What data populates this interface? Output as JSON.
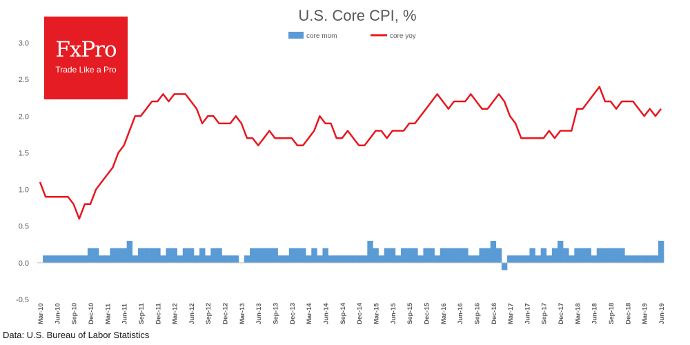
{
  "colors": {
    "mom": "#5b9bd5",
    "yoy": "#e8161e",
    "logo_bg": "#e51c23",
    "axis_text": "#595959"
  },
  "logo": {
    "name": "FxPro",
    "tagline": "Trade Like a Pro"
  },
  "source": "Data: U.S. Bureau of Labor Statistics",
  "chart_data": {
    "type": "bar+line",
    "title": "U.S.  Core CPI, %",
    "xlabel": "",
    "ylabel": "",
    "ylim": [
      -0.5,
      3.0
    ],
    "yticks": [
      "-0.5",
      "0.0",
      "0.5",
      "1.0",
      "1.5",
      "2.0",
      "2.5",
      "3.0"
    ],
    "legend_position": "top",
    "x_start": "Mar-10",
    "x_tick_labels": [
      "Mar-10",
      "Jun-10",
      "Sep-10",
      "Dec-10",
      "Mar-11",
      "Jun-11",
      "Sep-11",
      "Dec-11",
      "Mar-12",
      "Jun-12",
      "Sep-12",
      "Dec-12",
      "Mar-13",
      "Jun-13",
      "Sep-13",
      "Dec-13",
      "Mar-14",
      "Jun-14",
      "Sep-14",
      "Dec-14",
      "Mar-15",
      "Jun-15",
      "Sep-15",
      "Dec-15",
      "Mar-16",
      "Jun-16",
      "Sep-16",
      "Dec-16",
      "Mar-17",
      "Jun-17",
      "Sep-17",
      "Dec-17",
      "Mar-18",
      "Jun-18",
      "Sep-18",
      "Dec-18",
      "Mar-19",
      "Jun-19"
    ],
    "series": [
      {
        "name": "core mom",
        "kind": "bar",
        "values": [
          0.0,
          0.1,
          0.1,
          0.1,
          0.1,
          0.1,
          0.1,
          0.1,
          0.1,
          0.2,
          0.2,
          0.1,
          0.1,
          0.2,
          0.2,
          0.2,
          0.3,
          0.1,
          0.2,
          0.2,
          0.2,
          0.2,
          0.1,
          0.2,
          0.2,
          0.1,
          0.2,
          0.2,
          0.1,
          0.2,
          0.1,
          0.2,
          0.2,
          0.1,
          0.1,
          0.1,
          0.0,
          0.1,
          0.2,
          0.2,
          0.2,
          0.2,
          0.2,
          0.1,
          0.1,
          0.2,
          0.2,
          0.2,
          0.1,
          0.2,
          0.1,
          0.2,
          0.1,
          0.1,
          0.1,
          0.1,
          0.1,
          0.1,
          0.1,
          0.3,
          0.2,
          0.1,
          0.2,
          0.2,
          0.1,
          0.2,
          0.2,
          0.2,
          0.1,
          0.2,
          0.2,
          0.1,
          0.2,
          0.2,
          0.2,
          0.2,
          0.2,
          0.1,
          0.1,
          0.2,
          0.2,
          0.3,
          0.2,
          -0.1,
          0.1,
          0.1,
          0.1,
          0.1,
          0.2,
          0.1,
          0.2,
          0.1,
          0.2,
          0.3,
          0.2,
          0.1,
          0.2,
          0.2,
          0.2,
          0.1,
          0.2,
          0.2,
          0.2,
          0.2,
          0.2,
          0.1,
          0.1,
          0.1,
          0.1,
          0.1,
          0.1,
          0.3
        ]
      },
      {
        "name": "core yoy",
        "kind": "line",
        "values": [
          1.1,
          0.9,
          0.9,
          0.9,
          0.9,
          0.9,
          0.8,
          0.6,
          0.8,
          0.8,
          1.0,
          1.1,
          1.2,
          1.3,
          1.5,
          1.6,
          1.8,
          2.0,
          2.0,
          2.1,
          2.2,
          2.2,
          2.3,
          2.2,
          2.3,
          2.3,
          2.3,
          2.2,
          2.1,
          1.9,
          2.0,
          2.0,
          1.9,
          1.9,
          1.9,
          2.0,
          1.9,
          1.7,
          1.7,
          1.6,
          1.7,
          1.8,
          1.7,
          1.7,
          1.7,
          1.7,
          1.6,
          1.6,
          1.7,
          1.8,
          2.0,
          1.9,
          1.9,
          1.7,
          1.7,
          1.8,
          1.7,
          1.6,
          1.6,
          1.7,
          1.8,
          1.8,
          1.7,
          1.8,
          1.8,
          1.8,
          1.9,
          1.9,
          2.0,
          2.1,
          2.2,
          2.3,
          2.2,
          2.1,
          2.2,
          2.2,
          2.2,
          2.3,
          2.2,
          2.1,
          2.1,
          2.2,
          2.3,
          2.2,
          2.0,
          1.9,
          1.7,
          1.7,
          1.7,
          1.7,
          1.7,
          1.8,
          1.7,
          1.8,
          1.8,
          1.8,
          2.1,
          2.1,
          2.2,
          2.3,
          2.4,
          2.2,
          2.2,
          2.1,
          2.2,
          2.2,
          2.2,
          2.1,
          2.0,
          2.1,
          2.0,
          2.1
        ]
      }
    ]
  }
}
